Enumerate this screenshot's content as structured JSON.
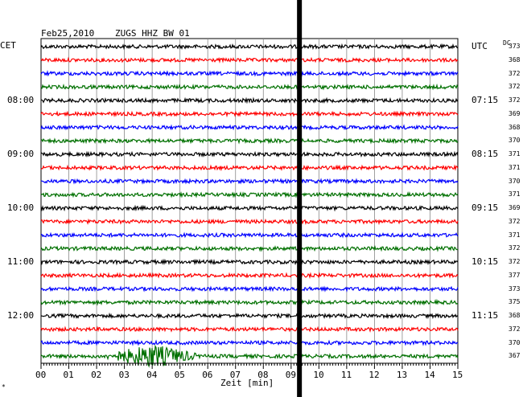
{
  "header": {
    "date": "Feb25,2010",
    "station": "ZUGS HHZ BW 01",
    "left_tz": "CET",
    "right_tz": "UTC",
    "dc_label": "DC"
  },
  "footer": {
    "xlabel": "Zeit [min]",
    "corner_mark": "*"
  },
  "chart_data": {
    "type": "line",
    "title": "Feb25,2010   ZUGS HHZ BW 01",
    "xlabel": "Zeit [min]",
    "x_range": [
      0,
      15
    ],
    "x_ticks": [
      "00",
      "01",
      "02",
      "03",
      "04",
      "05",
      "06",
      "07",
      "08",
      "09",
      "10",
      "11",
      "12",
      "13",
      "14",
      "15"
    ],
    "trace_colors": [
      "#000000",
      "#ff0000",
      "#0000ff",
      "#007000"
    ],
    "trace_minutes": 15,
    "left_time_labels": [
      {
        "trace_index": 4,
        "text": "08:00"
      },
      {
        "trace_index": 8,
        "text": "09:00"
      },
      {
        "trace_index": 12,
        "text": "10:00"
      },
      {
        "trace_index": 16,
        "text": "11:00"
      },
      {
        "trace_index": 20,
        "text": "12:00"
      }
    ],
    "right_time_labels": [
      {
        "trace_index": 0,
        "text": "UTC"
      },
      {
        "trace_index": 4,
        "text": "07:15"
      },
      {
        "trace_index": 8,
        "text": "08:15"
      },
      {
        "trace_index": 12,
        "text": "09:15"
      },
      {
        "trace_index": 16,
        "text": "10:15"
      },
      {
        "trace_index": 20,
        "text": "11:15"
      }
    ],
    "dc_offsets": [
      373,
      368,
      372,
      372,
      372,
      369,
      368,
      370,
      371,
      371,
      370,
      371,
      369,
      372,
      371,
      372,
      372,
      377,
      373,
      375,
      368,
      372,
      370,
      367
    ],
    "vertical_marker_minute": 9.3,
    "events": [
      {
        "trace_index": 23,
        "start_min": 2.2,
        "end_min": 5.6,
        "peak_min": 4.0
      }
    ]
  }
}
